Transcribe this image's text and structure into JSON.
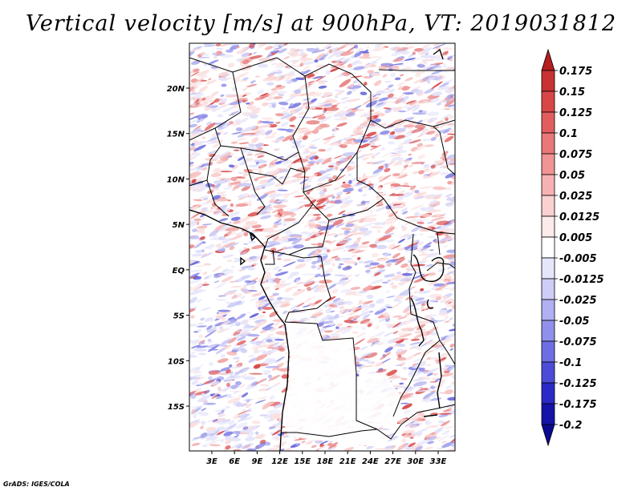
{
  "title": "Vertical velocity [m/s] at 900hPa, VT: 2019031812",
  "footer": "GrADS: IGES/COLA",
  "map": {
    "lat_range": [
      -20,
      25
    ],
    "lon_range": [
      0,
      35
    ],
    "y_ticks": [
      "20N",
      "15N",
      "10N",
      "5N",
      "EQ",
      "5S",
      "10S",
      "15S"
    ],
    "x_ticks": [
      "3E",
      "6E",
      "9E",
      "12E",
      "15E",
      "18E",
      "21E",
      "24E",
      "27E",
      "30E",
      "33E"
    ]
  },
  "colorbar": {
    "levels": [
      "0.175",
      "0.15",
      "0.125",
      "0.1",
      "0.075",
      "0.05",
      "0.025",
      "0.0125",
      "0.005",
      "-0.005",
      "-0.0125",
      "-0.025",
      "-0.05",
      "-0.075",
      "-0.1",
      "-0.125",
      "-0.175",
      "-0.2"
    ],
    "colors": [
      "#b41e1e",
      "#c83232",
      "#d84646",
      "#e25e5e",
      "#ea7878",
      "#f09494",
      "#f6b2b2",
      "#fad0d0",
      "#fdeaea",
      "#ffffff",
      "#e6e6fb",
      "#cdcdf7",
      "#b0b0f2",
      "#9090ec",
      "#6e6ee4",
      "#4c4cd8",
      "#2a2ac8",
      "#1414a8",
      "#0a0a90"
    ]
  }
}
